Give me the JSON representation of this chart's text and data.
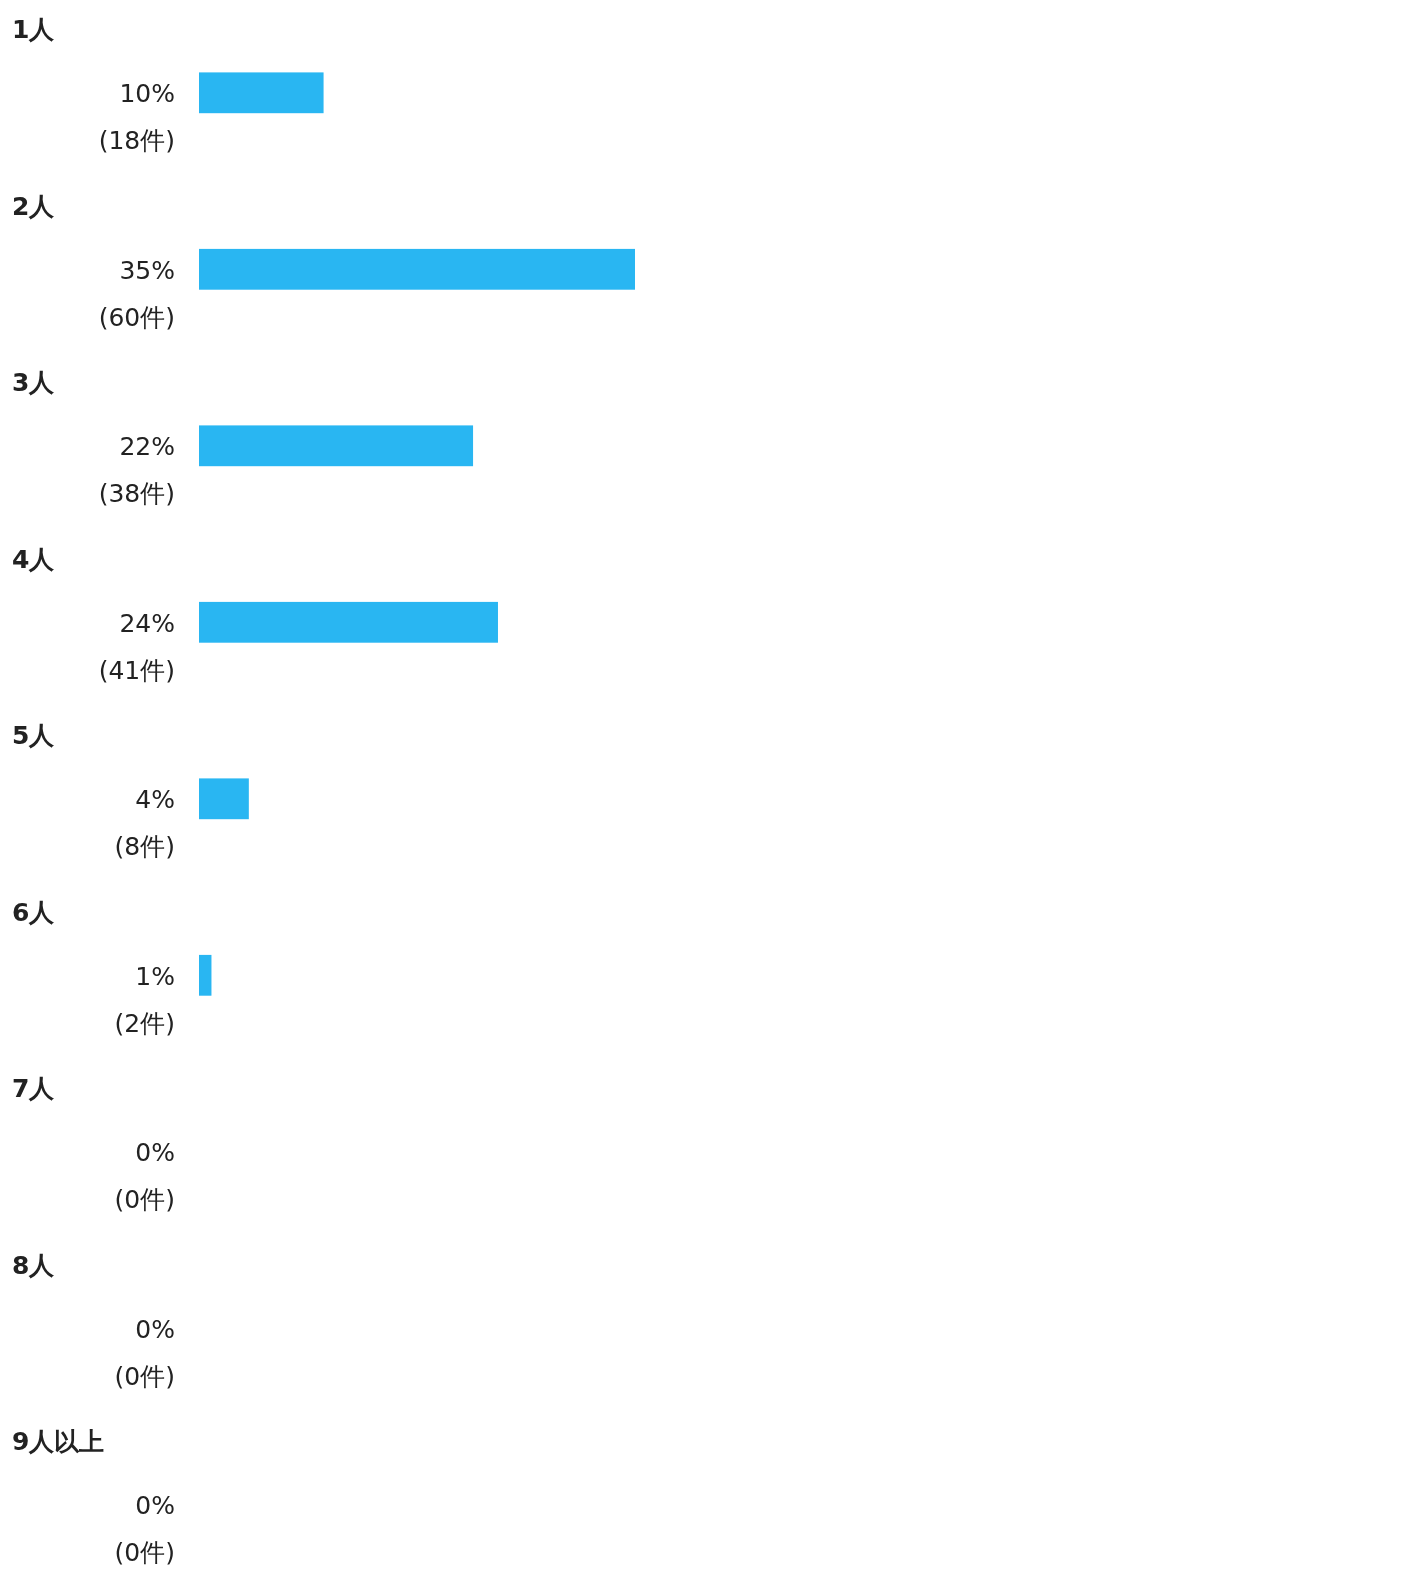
{
  "chart_data": {
    "type": "bar",
    "orientation": "horizontal",
    "categories": [
      "1人",
      "2人",
      "3人",
      "4人",
      "5人",
      "6人",
      "7人",
      "8人",
      "9人以上"
    ],
    "values": [
      10,
      35,
      22,
      24,
      4,
      1,
      0,
      0,
      0
    ],
    "color": "#29b6f2",
    "value_labels": [
      "10%\n(18件)",
      "35%\n(60件)",
      "22%\n(38件)",
      "24%\n(41件)",
      "4%\n(8件)",
      "1%\n(2件)",
      "0%\n(0件)",
      "0%\n(0件)",
      "0%\n(0件)"
    ]
  }
}
